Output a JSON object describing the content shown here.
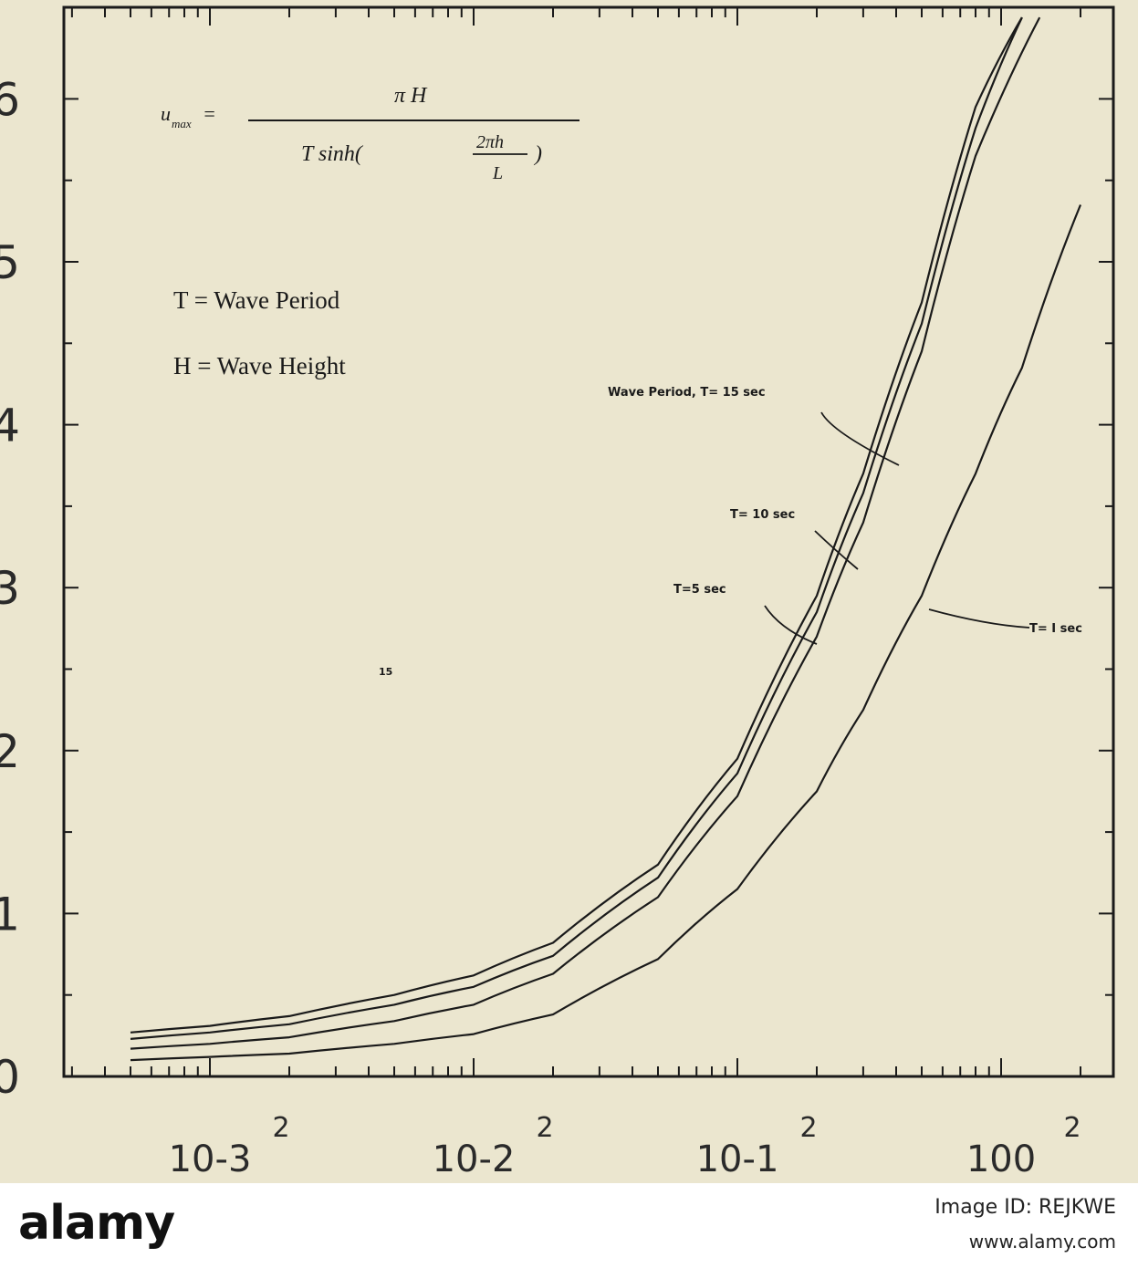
{
  "chart_data": {
    "type": "line",
    "title": "",
    "xlabel": "",
    "ylabel": "",
    "xscale": "log",
    "xlim": [
      0.0005,
      2.5
    ],
    "ylim": [
      0,
      6.5
    ],
    "y_ticks": [
      0,
      1,
      2,
      3,
      4,
      5,
      6
    ],
    "x_tick_labels": [
      "10-3",
      "10-2",
      "10-1",
      "100"
    ],
    "x_tick_sublabels": [
      "2",
      "2",
      "2",
      "2"
    ],
    "grid": false,
    "equation": {
      "lhs": "u",
      "lhs_sub": "max",
      "numerator": "π H",
      "denominator_prefix": "T sinh(",
      "denominator_frac_num": "2πh",
      "denominator_frac_den": "L",
      "denominator_suffix": ")"
    },
    "legend": [
      "T = Wave Period",
      "H = Wave Height"
    ],
    "series": [
      {
        "name": "Wave Period, T= 15 sec",
        "x": [
          0.0005,
          0.001,
          0.002,
          0.005,
          0.01,
          0.02,
          0.05,
          0.1,
          0.2,
          0.3,
          0.5,
          0.8,
          1.2
        ],
        "y": [
          0.27,
          0.31,
          0.37,
          0.5,
          0.62,
          0.82,
          1.3,
          1.95,
          2.95,
          3.7,
          4.75,
          5.95,
          6.5
        ]
      },
      {
        "name": "T= 10 sec",
        "x": [
          0.0005,
          0.001,
          0.002,
          0.005,
          0.01,
          0.02,
          0.05,
          0.1,
          0.2,
          0.3,
          0.5,
          0.8,
          1.2
        ],
        "y": [
          0.23,
          0.27,
          0.32,
          0.44,
          0.55,
          0.74,
          1.22,
          1.86,
          2.85,
          3.58,
          4.62,
          5.82,
          6.5
        ]
      },
      {
        "name": "T=5 sec",
        "x": [
          0.0005,
          0.001,
          0.002,
          0.005,
          0.01,
          0.02,
          0.05,
          0.1,
          0.2,
          0.3,
          0.5,
          0.8,
          1.4
        ],
        "y": [
          0.17,
          0.2,
          0.24,
          0.34,
          0.44,
          0.63,
          1.1,
          1.72,
          2.7,
          3.4,
          4.45,
          5.65,
          6.5
        ]
      },
      {
        "name": "T= I sec",
        "x": [
          0.0005,
          0.001,
          0.002,
          0.005,
          0.01,
          0.02,
          0.05,
          0.1,
          0.2,
          0.3,
          0.5,
          0.8,
          1.2,
          2.0
        ],
        "y": [
          0.1,
          0.12,
          0.14,
          0.2,
          0.26,
          0.38,
          0.72,
          1.15,
          1.75,
          2.25,
          2.95,
          3.7,
          4.35,
          5.35
        ]
      }
    ],
    "annotations": [
      "Wave Period, T= 15 sec",
      "T= 10 sec",
      "T=5 sec",
      "T= I sec",
      "15"
    ]
  },
  "footer": {
    "brand": "alamy",
    "image_id": "Image ID: REJKWE",
    "url": "www.alamy.com"
  }
}
